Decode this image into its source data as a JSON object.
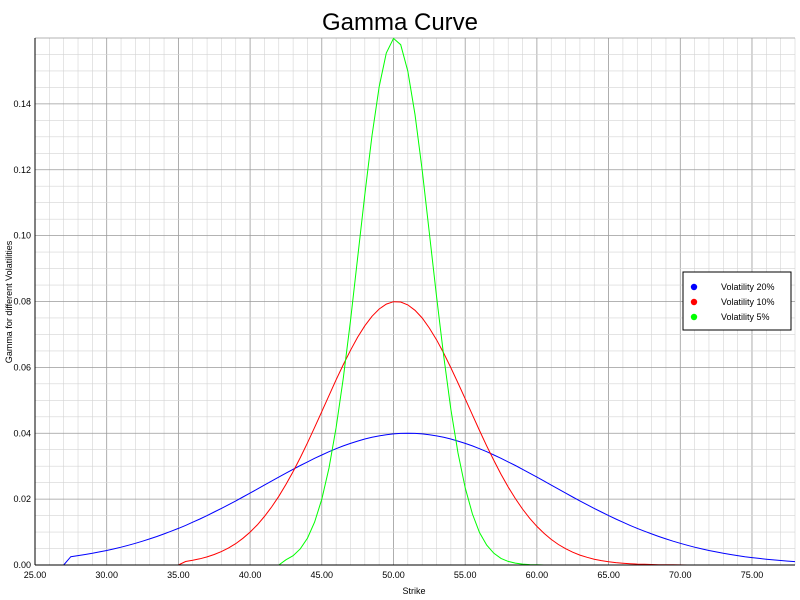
{
  "chart_data": {
    "type": "line",
    "title": "Gamma Curve",
    "xlabel": "Strike",
    "ylabel": "Gamma for different Volatilities",
    "xlim": [
      25.0,
      78.0
    ],
    "ylim": [
      0.0,
      0.16
    ],
    "x_ticks": [
      "25.00",
      "30.00",
      "35.00",
      "40.00",
      "45.00",
      "50.00",
      "55.00",
      "60.00",
      "65.00",
      "70.00",
      "75.00"
    ],
    "y_ticks": [
      "0.00",
      "0.02",
      "0.04",
      "0.06",
      "0.08",
      "0.10",
      "0.12",
      "0.14"
    ],
    "grid": true,
    "legend_position": "right",
    "series": [
      {
        "name": "Volatility 20%",
        "color": "#0000ff",
        "peak_x": 51.0,
        "peak": 0.04,
        "sigma": 10.0,
        "x_start": 27.5,
        "x_end": 78.0
      },
      {
        "name": "Volatility 10%",
        "color": "#ff0000",
        "peak_x": 50.2,
        "peak": 0.08,
        "sigma": 5.0,
        "x_start": 35.5,
        "x_end": 70.0
      },
      {
        "name": "Volatility 5%",
        "color": "#00ff00",
        "peak_x": 50.1,
        "peak": 0.16,
        "sigma": 2.5,
        "x_start": 42.5,
        "x_end": 60.0
      }
    ]
  }
}
